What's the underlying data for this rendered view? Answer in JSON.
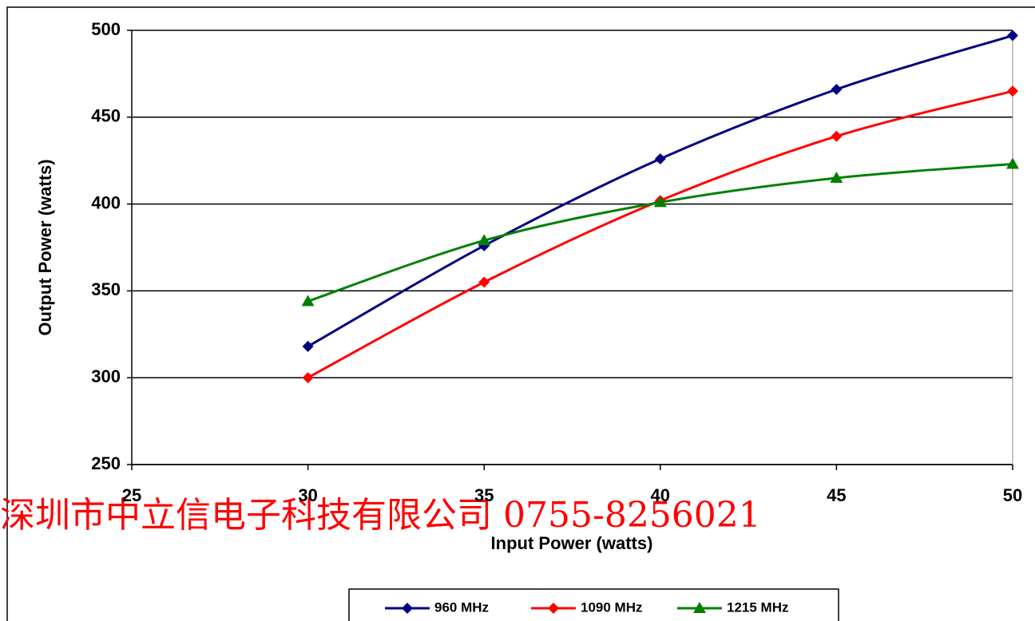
{
  "chart_data": {
    "type": "line",
    "x_label": "Input Power (watts)",
    "y_label": "Output Power (watts)",
    "x": [
      30,
      35,
      40,
      45,
      50
    ],
    "series": [
      {
        "name": "960 MHz",
        "color": "#000080",
        "marker": "diamond",
        "values": [
          318,
          376,
          426,
          466,
          497
        ]
      },
      {
        "name": "1090 MHz",
        "color": "#ff0000",
        "marker": "diamond",
        "values": [
          300,
          355,
          402,
          439,
          465
        ]
      },
      {
        "name": "1215 MHz",
        "color": "#008000",
        "marker": "triangle",
        "values": [
          344,
          379,
          401,
          415,
          423
        ]
      }
    ],
    "xlim": [
      25,
      50
    ],
    "xticks": [
      25,
      30,
      35,
      40,
      45,
      50
    ],
    "ylim": [
      250,
      500
    ],
    "yticks": [
      250,
      300,
      350,
      400,
      450,
      500
    ],
    "grid": true,
    "legend": "bottom",
    "annotation": "深圳市中立信电子科技有限公司 0755-8256021"
  }
}
